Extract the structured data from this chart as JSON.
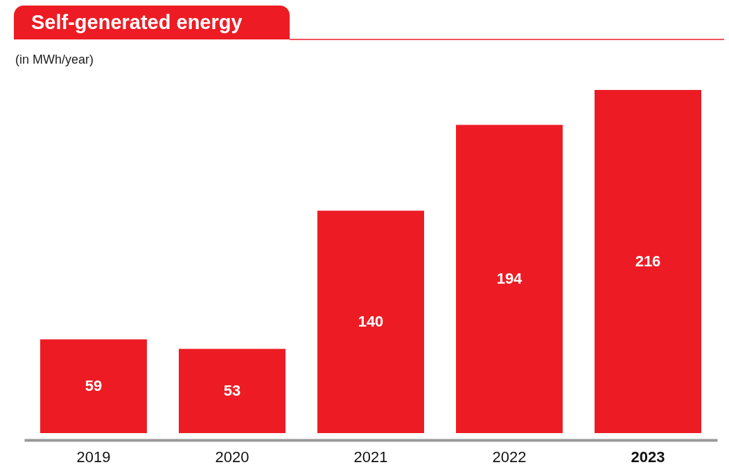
{
  "chart_data": {
    "type": "bar",
    "title": "Self-generated energy",
    "subtitle": "(in MWh/year)",
    "categories": [
      "2019",
      "2020",
      "2021",
      "2022",
      "2023"
    ],
    "values": [
      59,
      53,
      140,
      194,
      216
    ],
    "color": "#ed1c24",
    "data_labels": true
  }
}
